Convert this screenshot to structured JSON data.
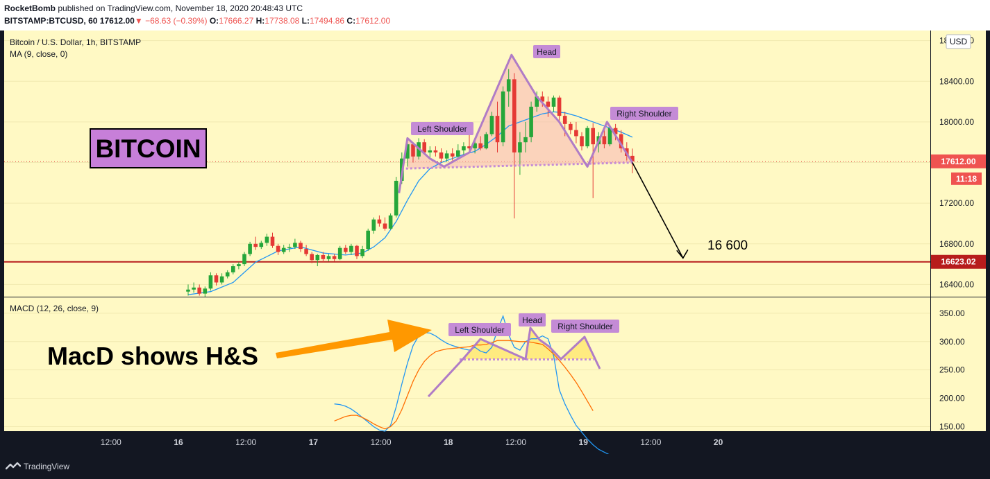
{
  "header": {
    "author": "RocketBomb",
    "published_text": "published on TradingView.com, November 18, 2020 20:48:43 UTC",
    "symbol": "BITSTAMP:BTCUSD, 60",
    "last_price": "17612.00",
    "change": "−68.63 (−0.39%)",
    "open_label": "O:",
    "open_value": "17666.27",
    "high_label": "H:",
    "high_value": "17738.08",
    "low_label": "L:",
    "low_value": "17494.86",
    "close_label": "C:",
    "close_value": "17612.00"
  },
  "panes": {
    "price_title": "Bitcoin / U.S. Dollar, 1h, BITSTAMP",
    "ma_label": "MA (9, close, 0)",
    "macd_label": "MACD (12, 26, close, 9)",
    "currency": "USD"
  },
  "price_scale": {
    "ticks": [
      "18800.00",
      "18400.00",
      "18000.00",
      "17600.00",
      "17200.00",
      "16800.00",
      "16400.00"
    ],
    "current_price_label": "17612.00",
    "countdown_label": "11:18",
    "level_label": "16623.02"
  },
  "macd_scale": {
    "ticks": [
      "350.00",
      "300.00",
      "250.00",
      "200.00",
      "150.00"
    ]
  },
  "time_axis": {
    "ticks": [
      "12:00",
      "16",
      "12:00",
      "17",
      "12:00",
      "18",
      "12:00",
      "19",
      "12:00",
      "20"
    ]
  },
  "annotations": {
    "bitcoin_title": "BITCOIN",
    "target_text": "16 600",
    "macd_note": "MacD shows H&S",
    "price_left_shoulder": "Left Shoulder",
    "price_head": "Head",
    "price_right_shoulder": "Right Shoulder",
    "macd_left_shoulder": "Left Shoulder",
    "macd_head": "Head",
    "macd_right_shoulder": "Right Shoulder"
  },
  "footer": {
    "brand": "TradingView"
  },
  "colors": {
    "background": "#fff9c4",
    "up": "#26a63a",
    "down": "#e53935",
    "ma": "#2196f3",
    "macd": "#2196f3",
    "signal": "#ff6d00",
    "pattern": "#b07cc6",
    "label_bg": "#c48bd6",
    "support": "#b71c1c",
    "arrow": "#ff9800"
  },
  "chart_data": {
    "type": "candlestick",
    "start_time": "2020-11-16T06:00Z",
    "interval_hours": 1,
    "ohlc": [
      [
        16330,
        16400,
        16290,
        16350
      ],
      [
        16350,
        16420,
        16320,
        16370
      ],
      [
        16370,
        16400,
        16290,
        16310
      ],
      [
        16310,
        16380,
        16280,
        16360
      ],
      [
        16360,
        16520,
        16340,
        16490
      ],
      [
        16490,
        16510,
        16390,
        16420
      ],
      [
        16420,
        16510,
        16400,
        16480
      ],
      [
        16480,
        16540,
        16460,
        16520
      ],
      [
        16520,
        16600,
        16500,
        16580
      ],
      [
        16580,
        16620,
        16550,
        16600
      ],
      [
        16600,
        16720,
        16580,
        16700
      ],
      [
        16700,
        16820,
        16680,
        16800
      ],
      [
        16800,
        16870,
        16740,
        16770
      ],
      [
        16770,
        16830,
        16750,
        16810
      ],
      [
        16810,
        16900,
        16780,
        16870
      ],
      [
        16870,
        16910,
        16760,
        16780
      ],
      [
        16780,
        16800,
        16690,
        16720
      ],
      [
        16720,
        16790,
        16700,
        16760
      ],
      [
        16760,
        16800,
        16720,
        16770
      ],
      [
        16770,
        16850,
        16750,
        16810
      ],
      [
        16810,
        16830,
        16720,
        16750
      ],
      [
        16750,
        16790,
        16680,
        16700
      ],
      [
        16700,
        16720,
        16610,
        16640
      ],
      [
        16640,
        16700,
        16580,
        16690
      ],
      [
        16690,
        16720,
        16620,
        16650
      ],
      [
        16650,
        16700,
        16630,
        16680
      ],
      [
        16680,
        16700,
        16630,
        16650
      ],
      [
        16650,
        16780,
        16640,
        16760
      ],
      [
        16760,
        16790,
        16700,
        16720
      ],
      [
        16720,
        16800,
        16690,
        16780
      ],
      [
        16780,
        16790,
        16650,
        16680
      ],
      [
        16680,
        16780,
        16660,
        16750
      ],
      [
        16750,
        16950,
        16730,
        16930
      ],
      [
        16930,
        17060,
        16900,
        17040
      ],
      [
        17040,
        17080,
        16970,
        17000
      ],
      [
        17000,
        17060,
        16930,
        16950
      ],
      [
        16950,
        17100,
        16940,
        17080
      ],
      [
        17080,
        17460,
        17060,
        17420
      ],
      [
        17420,
        17700,
        17390,
        17640
      ],
      [
        17640,
        17820,
        17560,
        17780
      ],
      [
        17780,
        17800,
        17600,
        17660
      ],
      [
        17660,
        17840,
        17630,
        17800
      ],
      [
        17800,
        17830,
        17680,
        17700
      ],
      [
        17700,
        17760,
        17640,
        17720
      ],
      [
        17720,
        17760,
        17660,
        17700
      ],
      [
        17700,
        17740,
        17600,
        17640
      ],
      [
        17640,
        17720,
        17610,
        17690
      ],
      [
        17690,
        17740,
        17620,
        17660
      ],
      [
        17660,
        17780,
        17640,
        17720
      ],
      [
        17720,
        17800,
        17660,
        17760
      ],
      [
        17760,
        17900,
        17700,
        17740
      ],
      [
        17740,
        17820,
        17690,
        17790
      ],
      [
        17790,
        17860,
        17720,
        17740
      ],
      [
        17740,
        17900,
        17730,
        17880
      ],
      [
        17880,
        18100,
        17860,
        18060
      ],
      [
        18060,
        18200,
        17700,
        17800
      ],
      [
        17800,
        18350,
        17760,
        18300
      ],
      [
        18300,
        18520,
        18150,
        18420
      ],
      [
        18420,
        18480,
        17050,
        17700
      ],
      [
        17700,
        17900,
        17480,
        17800
      ],
      [
        17800,
        18000,
        17700,
        17850
      ],
      [
        17850,
        18200,
        17800,
        18150
      ],
      [
        18150,
        18300,
        18100,
        18250
      ],
      [
        18250,
        18300,
        18150,
        18200
      ],
      [
        18200,
        18250,
        18050,
        18150
      ],
      [
        18150,
        18260,
        18100,
        18240
      ],
      [
        18240,
        18260,
        18000,
        18060
      ],
      [
        18060,
        18100,
        17860,
        17980
      ],
      [
        17980,
        18000,
        17880,
        17920
      ],
      [
        17920,
        18000,
        17790,
        17860
      ],
      [
        17860,
        17900,
        17720,
        17760
      ],
      [
        17760,
        17960,
        17740,
        17940
      ],
      [
        17940,
        17990,
        17250,
        17780
      ],
      [
        17780,
        17900,
        17700,
        17860
      ],
      [
        17860,
        17920,
        17740,
        17780
      ],
      [
        17780,
        17960,
        17760,
        17940
      ],
      [
        17940,
        17980,
        17820,
        17880
      ],
      [
        17880,
        17920,
        17700,
        17740
      ],
      [
        17740,
        17800,
        17620,
        17666
      ],
      [
        17666,
        17738,
        17495,
        17612
      ]
    ],
    "ma_period": 9,
    "ma_values": [
      [
        0,
        16300
      ],
      [
        4,
        16330
      ],
      [
        8,
        16420
      ],
      [
        12,
        16620
      ],
      [
        16,
        16730
      ],
      [
        20,
        16770
      ],
      [
        24,
        16710
      ],
      [
        28,
        16690
      ],
      [
        31,
        16710
      ],
      [
        33,
        16770
      ],
      [
        35,
        16860
      ],
      [
        37,
        17020
      ],
      [
        39,
        17230
      ],
      [
        41,
        17420
      ],
      [
        43,
        17540
      ],
      [
        45,
        17600
      ],
      [
        47,
        17640
      ],
      [
        49,
        17680
      ],
      [
        51,
        17710
      ],
      [
        53,
        17780
      ],
      [
        55,
        17860
      ],
      [
        57,
        17960
      ],
      [
        59,
        18000
      ],
      [
        61,
        18040
      ],
      [
        63,
        18080
      ],
      [
        65,
        18100
      ],
      [
        67,
        18090
      ],
      [
        69,
        18060
      ],
      [
        71,
        18020
      ],
      [
        73,
        17980
      ],
      [
        75,
        17940
      ],
      [
        77,
        17900
      ],
      [
        79,
        17850
      ]
    ],
    "support_level": 16623.02,
    "target": 16600,
    "neckline": [
      [
        38,
        17540
      ],
      [
        79,
        17600
      ]
    ],
    "pattern_points": [
      [
        37.5,
        17300
      ],
      [
        39,
        17840
      ],
      [
        43,
        17640
      ],
      [
        45.5,
        17560
      ],
      [
        50,
        17700
      ],
      [
        57.5,
        18660
      ],
      [
        62,
        18250
      ],
      [
        66,
        18000
      ],
      [
        71,
        17560
      ],
      [
        74.5,
        18000
      ],
      [
        79,
        17600
      ]
    ],
    "target_arrow": [
      [
        79,
        17600
      ],
      [
        88,
        16660
      ]
    ],
    "macd_points": [
      [
        26,
        190
      ],
      [
        27,
        189
      ],
      [
        28,
        186
      ],
      [
        29,
        181
      ],
      [
        30,
        174
      ],
      [
        31,
        166
      ],
      [
        32,
        158
      ],
      [
        33,
        150
      ],
      [
        34,
        144
      ],
      [
        35,
        142
      ],
      [
        36,
        152
      ],
      [
        37,
        185
      ],
      [
        38,
        225
      ],
      [
        39,
        262
      ],
      [
        40,
        293
      ],
      [
        41,
        310
      ],
      [
        42,
        316
      ],
      [
        43,
        315
      ],
      [
        44,
        310
      ],
      [
        45,
        303
      ],
      [
        46,
        297
      ],
      [
        47,
        293
      ],
      [
        48,
        290
      ],
      [
        49,
        287
      ],
      [
        50,
        285
      ],
      [
        51,
        290
      ],
      [
        52,
        283
      ],
      [
        53,
        280
      ],
      [
        54,
        290
      ],
      [
        55,
        320
      ],
      [
        56,
        345
      ],
      [
        57,
        312
      ],
      [
        58,
        290
      ],
      [
        59,
        285
      ],
      [
        60,
        300
      ],
      [
        61,
        305
      ],
      [
        62,
        305
      ],
      [
        63,
        310
      ],
      [
        64,
        305
      ],
      [
        65,
        275
      ],
      [
        66,
        215
      ],
      [
        67,
        190
      ],
      [
        68,
        170
      ],
      [
        69,
        152
      ],
      [
        70,
        140
      ],
      [
        71,
        128
      ],
      [
        72,
        118
      ],
      [
        73,
        110
      ],
      [
        74,
        105
      ],
      [
        75,
        100
      ],
      [
        76,
        96
      ],
      [
        77,
        93
      ],
      [
        78,
        90
      ],
      [
        79,
        88
      ]
    ],
    "signal_points": [
      [
        26,
        160
      ],
      [
        27,
        164
      ],
      [
        28,
        168
      ],
      [
        29,
        170
      ],
      [
        30,
        170
      ],
      [
        31,
        166
      ],
      [
        32,
        161
      ],
      [
        33,
        155
      ],
      [
        34,
        150
      ],
      [
        35,
        146
      ],
      [
        36,
        150
      ],
      [
        37,
        160
      ],
      [
        38,
        180
      ],
      [
        39,
        205
      ],
      [
        40,
        230
      ],
      [
        41,
        250
      ],
      [
        42,
        265
      ],
      [
        43,
        275
      ],
      [
        44,
        282
      ],
      [
        45,
        285
      ],
      [
        46,
        287
      ],
      [
        47,
        288
      ],
      [
        48,
        289
      ],
      [
        49,
        290
      ],
      [
        50,
        291
      ],
      [
        51,
        294
      ],
      [
        52,
        294
      ],
      [
        53,
        295
      ],
      [
        54,
        298
      ],
      [
        55,
        302
      ],
      [
        56,
        302
      ],
      [
        57,
        302
      ],
      [
        58,
        301
      ],
      [
        59,
        300
      ],
      [
        60,
        300
      ],
      [
        61,
        299
      ],
      [
        62,
        297
      ],
      [
        63,
        295
      ],
      [
        64,
        287
      ],
      [
        65,
        278
      ],
      [
        66,
        267
      ],
      [
        67,
        255
      ],
      [
        68,
        242
      ],
      [
        69,
        228
      ],
      [
        70,
        212
      ],
      [
        71,
        195
      ],
      [
        72,
        178
      ]
    ],
    "price_range": [
      16280,
      18900
    ],
    "macd_range": [
      142,
      378
    ]
  }
}
